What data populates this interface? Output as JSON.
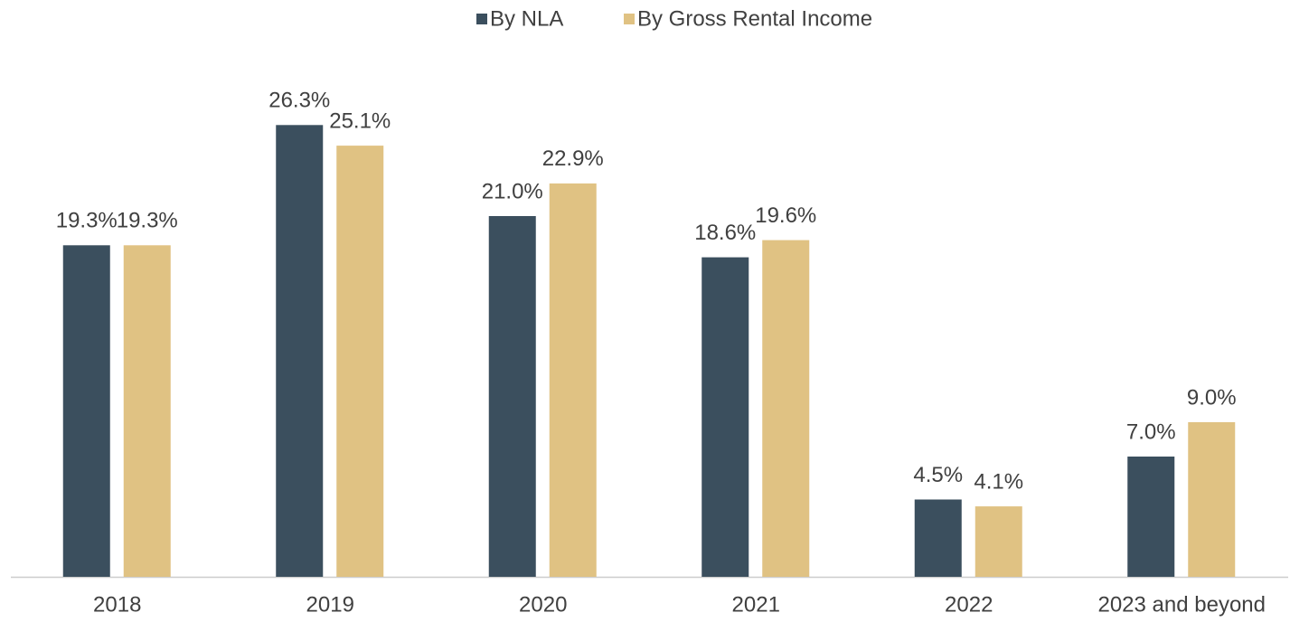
{
  "chart_data": {
    "type": "bar",
    "categories": [
      "2018",
      "2019",
      "2020",
      "2021",
      "2022",
      "2023 and beyond"
    ],
    "series": [
      {
        "name": "By NLA",
        "color": "#3b4f5e",
        "values": [
          19.3,
          26.3,
          21.0,
          18.6,
          4.5,
          7.0
        ],
        "value_labels": [
          "19.3%",
          "26.3%",
          "21.0%",
          "18.6%",
          "4.5%",
          "7.0%"
        ]
      },
      {
        "name": "By Gross Rental Income",
        "color": "#e0c283",
        "values": [
          19.3,
          25.1,
          22.9,
          19.6,
          4.1,
          9.0
        ],
        "value_labels": [
          "19.3%",
          "25.1%",
          "22.9%",
          "19.6%",
          "4.1%",
          "9.0%"
        ]
      }
    ],
    "ylim": [
      0,
      30
    ],
    "legend": "top"
  }
}
